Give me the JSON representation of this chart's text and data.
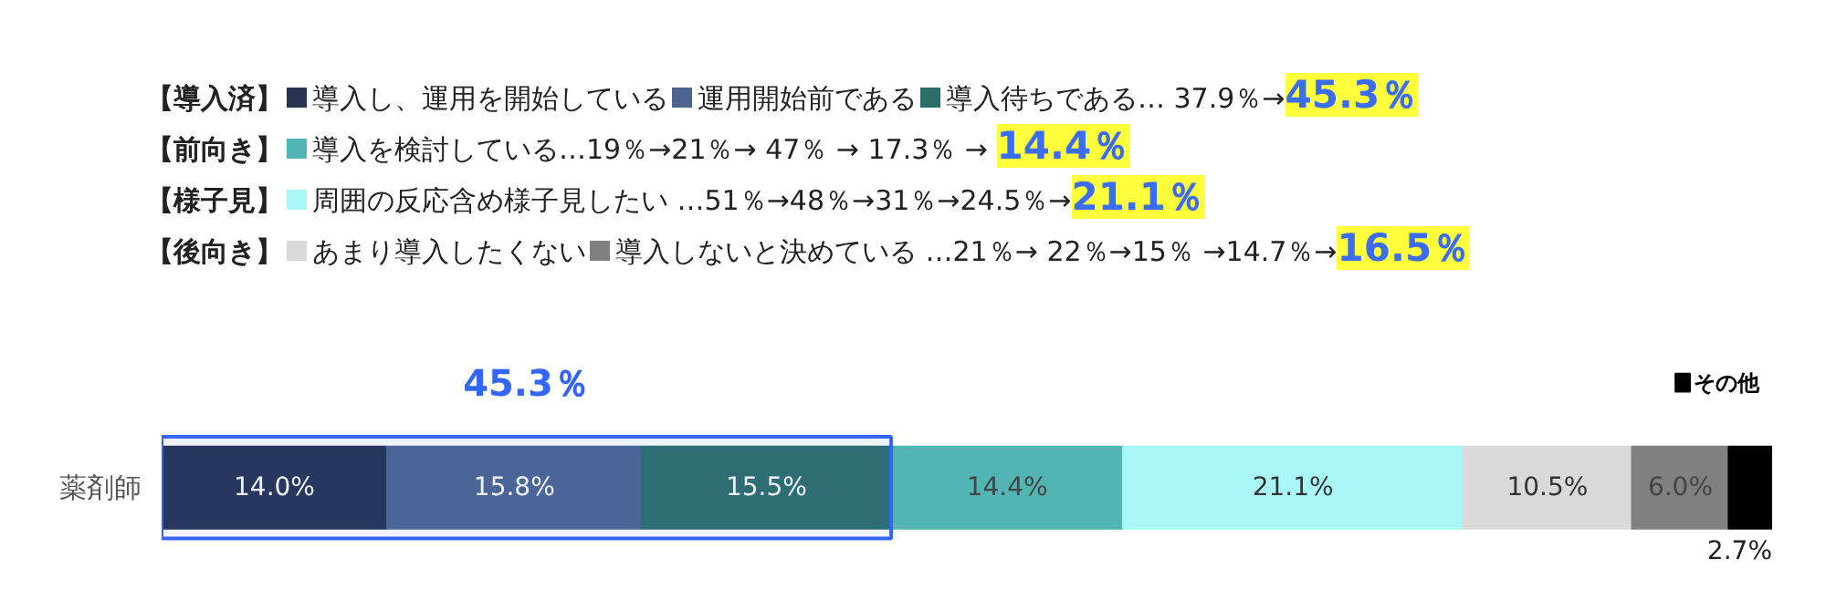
{
  "chart_data": {
    "type": "bar",
    "orientation": "horizontal",
    "stacked": true,
    "categories": [
      "薬剤師"
    ],
    "xlim": [
      0,
      100
    ],
    "legend": "top",
    "series": [
      {
        "name": "導入し、運用を開始している",
        "color": "#283350",
        "values": [
          14.0
        ],
        "value_labels": [
          "14.0%"
        ]
      },
      {
        "name": "運用開始前である",
        "color": "#4e6591",
        "values": [
          15.8
        ],
        "value_labels": [
          "15.8%"
        ]
      },
      {
        "name": "導入待ちである",
        "color": "#2e6e68",
        "values": [
          15.5
        ],
        "value_labels": [
          "15.5%"
        ]
      },
      {
        "name": "導入を検討している",
        "color": "#52b5b3",
        "values": [
          14.4
        ],
        "value_labels": [
          "14.4%"
        ]
      },
      {
        "name": "周囲の反応含め様子見したい",
        "color": "#aaf7f7",
        "values": [
          21.1
        ],
        "value_labels": [
          "21.1%"
        ]
      },
      {
        "name": "あまり導入したくない",
        "color": "#d9d9d9",
        "values": [
          10.5
        ],
        "value_labels": [
          "10.5%"
        ]
      },
      {
        "name": "導入しないと決めている",
        "color": "#808080",
        "values": [
          6.0
        ],
        "value_labels": [
          "6.0%"
        ]
      },
      {
        "name": "その他",
        "color": "#000000",
        "values": [
          2.7
        ],
        "value_labels": [
          "2.7%"
        ]
      }
    ],
    "bands": [
      {
        "axis": "x",
        "from": 0,
        "to": 45.3,
        "label": "45.3％",
        "color": "#3366ff"
      }
    ],
    "annotations": [
      "【導入済】",
      "【前向き】",
      "【様子見】",
      "【後向き】",
      "… 37.9％→",
      "…19％→21％→ 47％ → 17.3％ → ",
      " …51％→48％→31％→24.5％→",
      " …21％→ 22％→15％ →14.7％→",
      "45.3％",
      "14.4％",
      "21.1％",
      "16.5％"
    ]
  }
}
